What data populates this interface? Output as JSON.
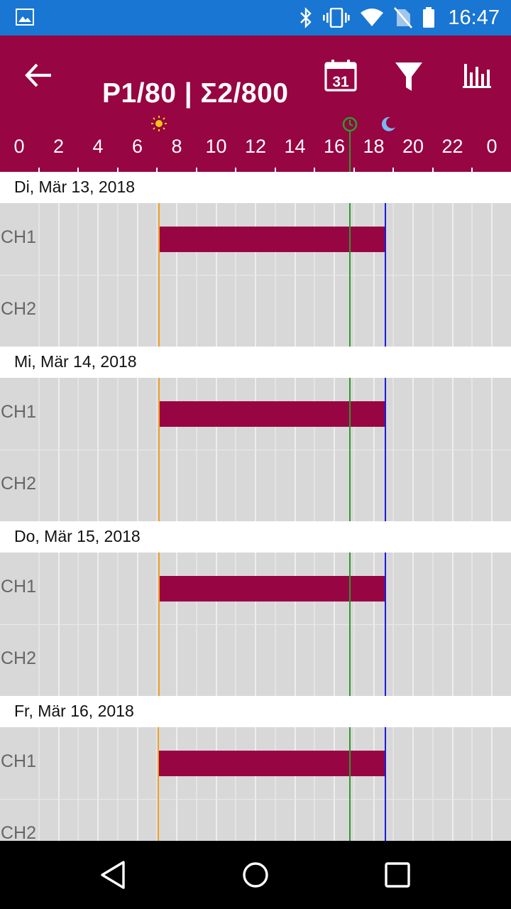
{
  "status_bar": {
    "time": "16:47",
    "icons": [
      "gallery-icon",
      "bluetooth-icon",
      "vibrate-icon",
      "wifi-icon",
      "no-sim-icon",
      "battery-icon"
    ]
  },
  "app_bar": {
    "title": "P1/80 | Σ2/800",
    "calendar_day": "31",
    "icons": [
      "back-arrow-icon",
      "calendar-icon",
      "filter-icon",
      "bar-chart-icon"
    ]
  },
  "axis": {
    "labels": [
      "0",
      "2",
      "4",
      "6",
      "8",
      "10",
      "12",
      "14",
      "16",
      "18",
      "20",
      "22",
      "0"
    ],
    "sunrise_hour": 7.1,
    "now_hour": 16.78,
    "sunset_hour": 18.6
  },
  "days": [
    {
      "date": "Di, Mär 13, 2018",
      "channels": [
        {
          "name": "CH1",
          "on": 7.1,
          "off": 18.55
        },
        {
          "name": "CH2"
        }
      ],
      "sunrise": 7.1,
      "sunset": 18.6
    },
    {
      "date": "Mi, Mär 14, 2018",
      "channels": [
        {
          "name": "CH1",
          "on": 7.1,
          "off": 18.55
        },
        {
          "name": "CH2"
        }
      ],
      "sunrise": 7.1,
      "sunset": 18.6
    },
    {
      "date": "Do, Mär 15, 2018",
      "channels": [
        {
          "name": "CH1",
          "on": 7.1,
          "off": 18.55
        },
        {
          "name": "CH2"
        }
      ],
      "sunrise": 7.1,
      "sunset": 18.6
    },
    {
      "date": "Fr, Mär 16, 2018",
      "channels": [
        {
          "name": "CH1",
          "on": 7.05,
          "off": 18.6
        },
        {
          "name": "CH2"
        }
      ],
      "sunrise": 7.05,
      "sunset": 18.6
    }
  ],
  "colors": {
    "primary": "#970542",
    "status_bar": "#1976d2",
    "sunrise": "#f0a020",
    "now": "#2e9a2e",
    "sunset": "#1a1ae0",
    "sun_icon": "#f5c518",
    "moon_icon": "#7ab8f5"
  }
}
